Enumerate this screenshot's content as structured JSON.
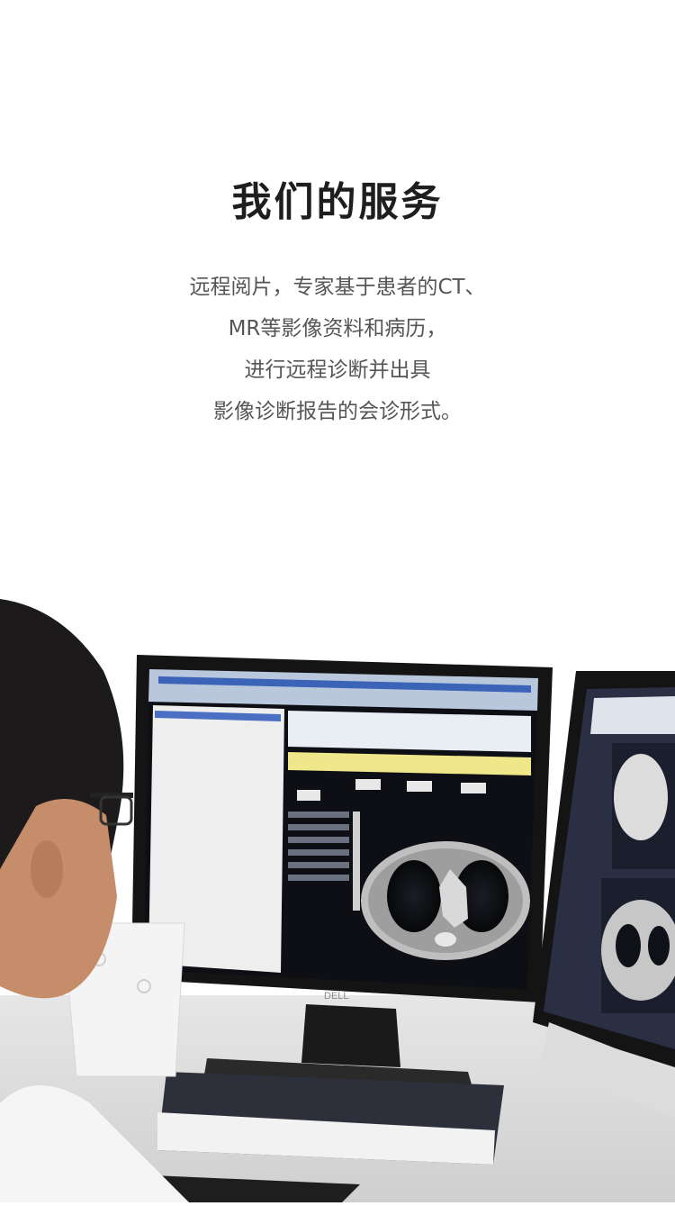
{
  "heading": "我们的服务",
  "description": {
    "lines": [
      "远程阅片，专家基于患者的CT、",
      "MR等影像资料和病历，",
      "进行远程诊断并出具",
      "影像诊断报告的会诊形式。"
    ]
  },
  "photo": {
    "monitor_brand": "DELL",
    "colors": {
      "skin": "#c58d6a",
      "hair": "#1c1a1a",
      "screen_bg": "#0d0f14",
      "monitor_frame": "#141414"
    }
  }
}
